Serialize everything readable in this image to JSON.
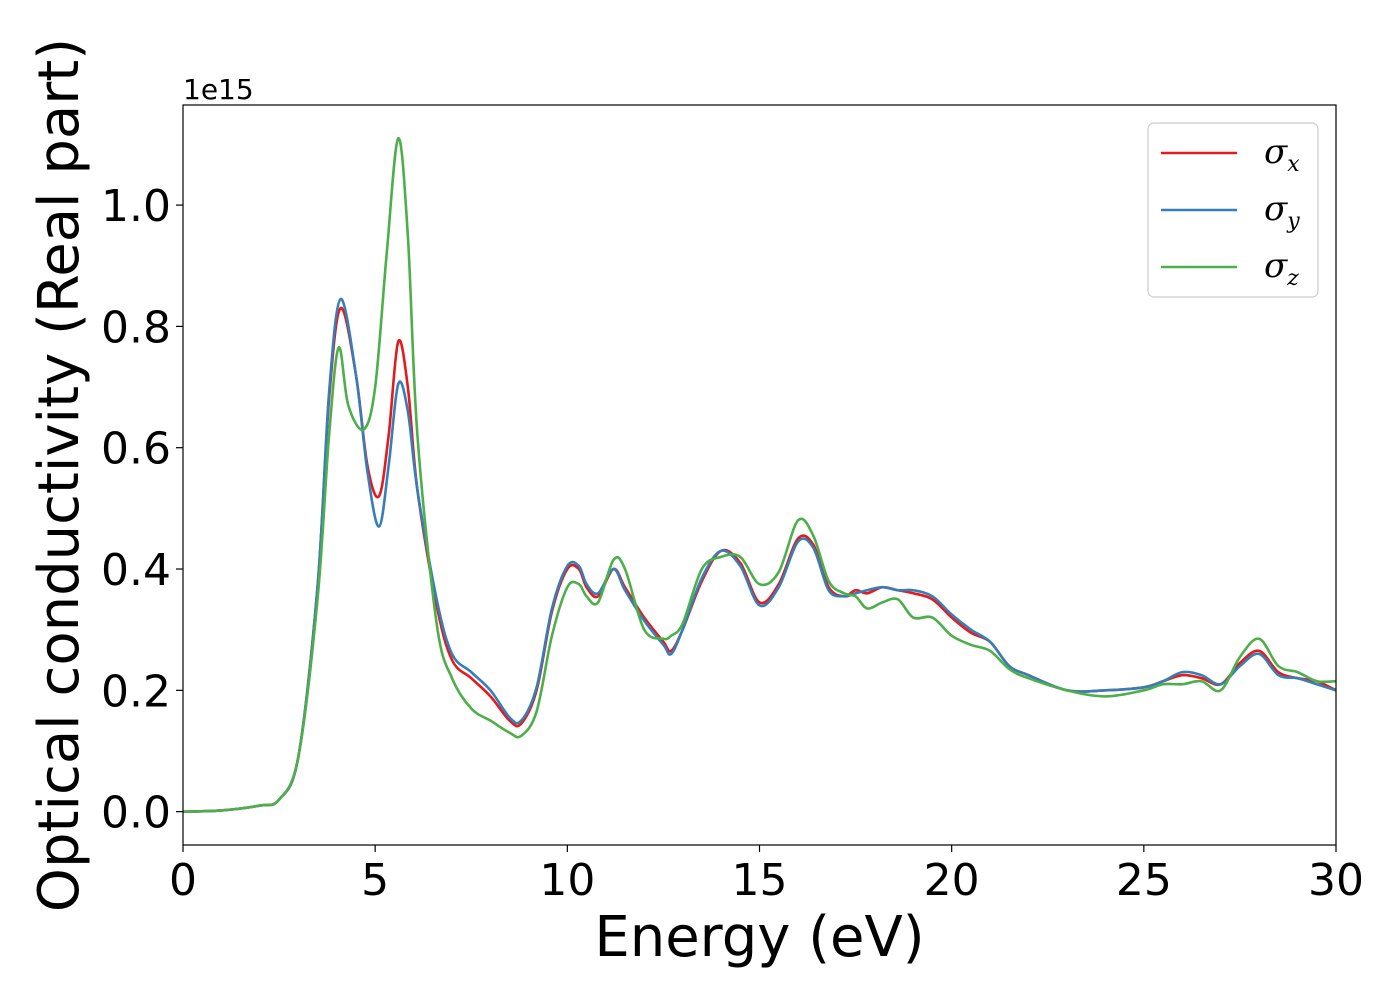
{
  "chart_data": {
    "type": "line",
    "xlabel": "Energy (eV)",
    "ylabel": "Optical conductivity (Real part)",
    "y_offset_label": "1e15",
    "xlim": [
      0,
      30
    ],
    "ylim": [
      -0.055,
      1.165
    ],
    "x_ticks": [
      0,
      5,
      10,
      15,
      20,
      25,
      30
    ],
    "x_tick_labels": [
      "0",
      "5",
      "10",
      "15",
      "20",
      "25",
      "30"
    ],
    "y_ticks": [
      0.0,
      0.2,
      0.4,
      0.6,
      0.8,
      1.0
    ],
    "y_tick_labels": [
      "0.0",
      "0.2",
      "0.4",
      "0.6",
      "0.8",
      "1.0"
    ],
    "grid": false,
    "legend_position": "top-right",
    "series": [
      {
        "name": "σx",
        "symbol": "σ",
        "subscript": "x",
        "color": "#e41a1c",
        "x": [
          0,
          1,
          2,
          2.5,
          3,
          3.5,
          3.8,
          4.1,
          4.5,
          4.8,
          5.1,
          5.35,
          5.6,
          5.85,
          6.1,
          6.6,
          7.0,
          7.5,
          8.0,
          8.5,
          8.8,
          9.2,
          9.6,
          10.0,
          10.3,
          10.5,
          10.8,
          11.2,
          11.5,
          12.0,
          12.5,
          12.7,
          13.0,
          13.5,
          14.0,
          14.5,
          15.0,
          15.5,
          16.0,
          16.4,
          16.8,
          17.2,
          17.5,
          17.8,
          18.2,
          18.6,
          19.0,
          19.5,
          20.0,
          20.5,
          21.0,
          21.5,
          22.0,
          23.0,
          24.0,
          25.0,
          25.5,
          26.0,
          26.5,
          27.0,
          27.5,
          28.0,
          28.5,
          29.0,
          29.5,
          30.0
        ],
        "values": [
          0.0,
          0.002,
          0.01,
          0.02,
          0.09,
          0.37,
          0.68,
          0.83,
          0.72,
          0.57,
          0.52,
          0.62,
          0.775,
          0.7,
          0.53,
          0.34,
          0.25,
          0.22,
          0.19,
          0.15,
          0.145,
          0.2,
          0.33,
          0.4,
          0.4,
          0.37,
          0.355,
          0.4,
          0.37,
          0.32,
          0.28,
          0.265,
          0.3,
          0.38,
          0.43,
          0.41,
          0.345,
          0.375,
          0.45,
          0.44,
          0.37,
          0.355,
          0.365,
          0.36,
          0.37,
          0.365,
          0.36,
          0.35,
          0.32,
          0.295,
          0.28,
          0.24,
          0.225,
          0.2,
          0.2,
          0.205,
          0.215,
          0.225,
          0.22,
          0.21,
          0.245,
          0.265,
          0.23,
          0.22,
          0.215,
          0.2
        ]
      },
      {
        "name": "σy",
        "symbol": "σ",
        "subscript": "y",
        "color": "#377eb8",
        "x": [
          0,
          1,
          2,
          2.5,
          3,
          3.5,
          3.8,
          4.1,
          4.5,
          4.8,
          5.1,
          5.35,
          5.6,
          5.85,
          6.1,
          6.6,
          7.0,
          7.5,
          8.0,
          8.5,
          8.8,
          9.2,
          9.6,
          10.0,
          10.3,
          10.5,
          10.8,
          11.2,
          11.5,
          12.0,
          12.5,
          12.7,
          13.0,
          13.5,
          14.0,
          14.5,
          15.0,
          15.5,
          16.0,
          16.4,
          16.8,
          17.2,
          17.5,
          17.8,
          18.2,
          18.6,
          19.0,
          19.5,
          20.0,
          20.5,
          21.0,
          21.5,
          22.0,
          23.0,
          24.0,
          25.0,
          25.5,
          26.0,
          26.5,
          27.0,
          27.5,
          28.0,
          28.5,
          29.0,
          29.5,
          30.0
        ],
        "values": [
          0.0,
          0.002,
          0.01,
          0.02,
          0.09,
          0.37,
          0.69,
          0.845,
          0.72,
          0.56,
          0.47,
          0.57,
          0.705,
          0.66,
          0.53,
          0.35,
          0.26,
          0.23,
          0.2,
          0.155,
          0.15,
          0.205,
          0.335,
          0.405,
          0.405,
          0.375,
          0.36,
          0.4,
          0.365,
          0.315,
          0.275,
          0.26,
          0.3,
          0.385,
          0.43,
          0.405,
          0.34,
          0.37,
          0.445,
          0.435,
          0.365,
          0.355,
          0.36,
          0.365,
          0.37,
          0.365,
          0.365,
          0.355,
          0.325,
          0.3,
          0.28,
          0.24,
          0.225,
          0.2,
          0.2,
          0.205,
          0.215,
          0.23,
          0.225,
          0.21,
          0.24,
          0.26,
          0.225,
          0.22,
          0.21,
          0.2
        ]
      },
      {
        "name": "σz",
        "symbol": "σ",
        "subscript": "z",
        "color": "#4daf4a",
        "x": [
          0,
          1,
          2,
          2.5,
          3,
          3.5,
          3.8,
          4.05,
          4.3,
          4.7,
          5.0,
          5.3,
          5.6,
          5.85,
          6.1,
          6.6,
          7.0,
          7.5,
          8.0,
          8.5,
          8.8,
          9.2,
          9.6,
          10.0,
          10.3,
          10.5,
          10.8,
          11.2,
          11.5,
          12.0,
          12.5,
          12.7,
          13.0,
          13.5,
          14.0,
          14.5,
          15.0,
          15.5,
          16.0,
          16.4,
          16.8,
          17.2,
          17.5,
          17.8,
          18.2,
          18.6,
          19.0,
          19.5,
          20.0,
          20.5,
          21.0,
          21.5,
          22.0,
          23.0,
          24.0,
          25.0,
          25.5,
          26.0,
          26.5,
          27.0,
          27.5,
          28.0,
          28.5,
          29.0,
          29.5,
          30.0
        ],
        "values": [
          0.0,
          0.002,
          0.01,
          0.02,
          0.09,
          0.35,
          0.62,
          0.765,
          0.67,
          0.63,
          0.7,
          0.92,
          1.11,
          0.95,
          0.62,
          0.31,
          0.22,
          0.17,
          0.15,
          0.13,
          0.125,
          0.165,
          0.29,
          0.37,
          0.375,
          0.355,
          0.345,
          0.415,
          0.4,
          0.3,
          0.285,
          0.29,
          0.31,
          0.4,
          0.42,
          0.42,
          0.375,
          0.395,
          0.48,
          0.455,
          0.38,
          0.36,
          0.355,
          0.335,
          0.345,
          0.35,
          0.32,
          0.32,
          0.29,
          0.275,
          0.265,
          0.235,
          0.22,
          0.2,
          0.19,
          0.2,
          0.21,
          0.21,
          0.215,
          0.2,
          0.255,
          0.285,
          0.24,
          0.23,
          0.215,
          0.215
        ]
      }
    ]
  }
}
